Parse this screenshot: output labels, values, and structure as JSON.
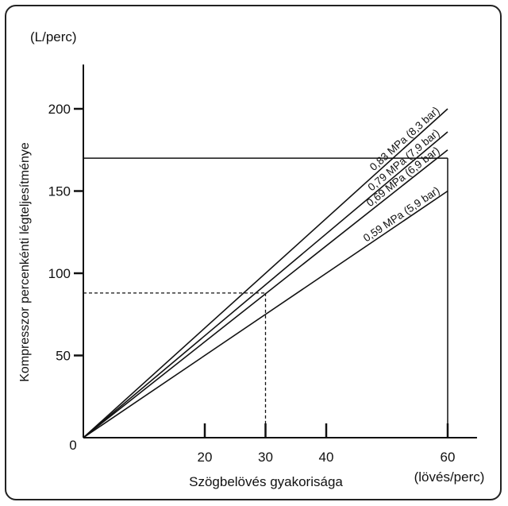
{
  "chart_data": {
    "type": "line",
    "ylabel": "Kompresszor percenkénti légteljesítménye",
    "yunit": "(L/perc)",
    "xlabel": "Szögbelövés gyakorisága",
    "xunit": "(lövés/perc)",
    "origin_label": "0",
    "xlim": [
      0,
      63
    ],
    "ylim": [
      0,
      225
    ],
    "xticks": [
      20,
      30,
      40,
      60
    ],
    "yticks": [
      50,
      100,
      150,
      200
    ],
    "grid": false,
    "series": [
      {
        "name": "0,83 MPa (8,3 bar)",
        "x": [
          0,
          60
        ],
        "y": [
          0,
          200
        ]
      },
      {
        "name": "0,79 MPa (7,9 bar)",
        "x": [
          0,
          60
        ],
        "y": [
          0,
          186
        ]
      },
      {
        "name": "0,69 MPa (6,9 bar)",
        "x": [
          0,
          60
        ],
        "y": [
          0,
          175
        ]
      },
      {
        "name": "0,59 MPa (5,9 bar)",
        "x": [
          0,
          60
        ],
        "y": [
          0,
          150
        ]
      }
    ],
    "reference_lines": [
      {
        "style": "solid",
        "x": 60,
        "y": 170
      },
      {
        "style": "dashed",
        "x": 30,
        "y": 88
      }
    ]
  }
}
